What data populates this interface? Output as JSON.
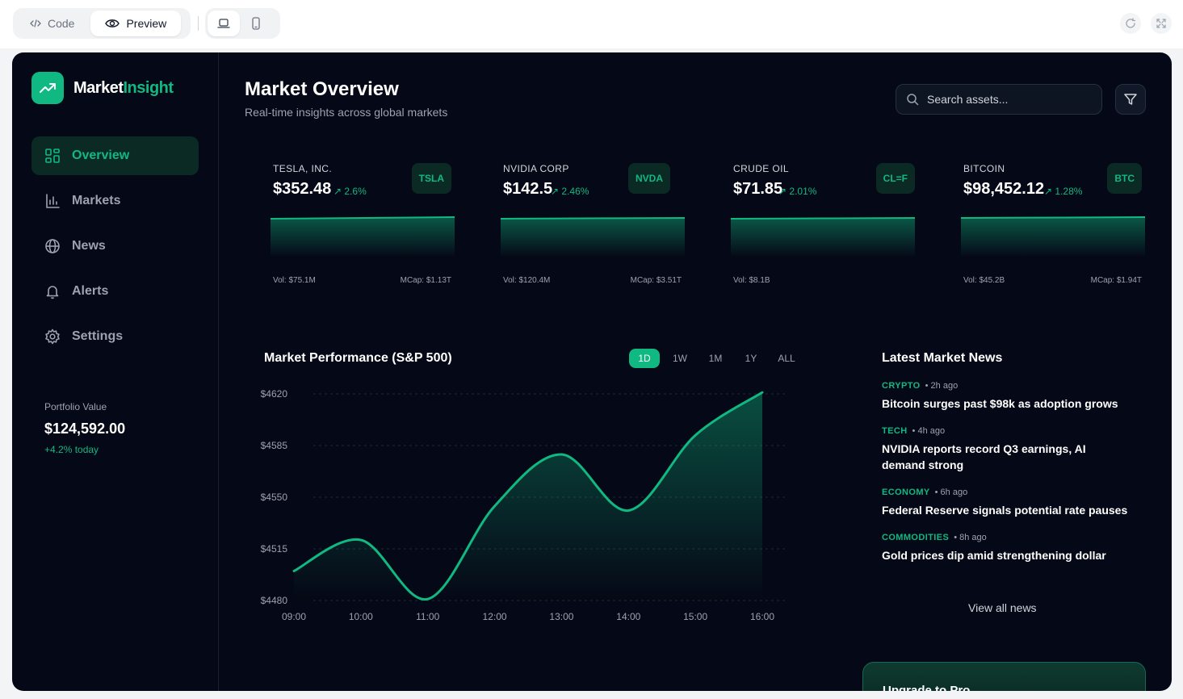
{
  "chrome": {
    "code_label": "Code",
    "preview_label": "Preview"
  },
  "app": {
    "brand_prefix": "Market",
    "brand_suffix": "Insight",
    "accent_color": "#10b981",
    "background_color": "#050816"
  },
  "sidebar": {
    "items": [
      {
        "label": "Overview",
        "icon": "grid-icon",
        "active": true
      },
      {
        "label": "Markets",
        "icon": "bar-chart-icon"
      },
      {
        "label": "News",
        "icon": "globe-icon"
      },
      {
        "label": "Alerts",
        "icon": "bell-icon"
      },
      {
        "label": "Settings",
        "icon": "gear-icon"
      }
    ],
    "portfolio": {
      "label": "Portfolio Value",
      "value": "$124,592.00",
      "change": "+4.2% today"
    }
  },
  "header": {
    "title": "Market Overview",
    "subtitle": "Real-time insights across global markets",
    "search_placeholder": "Search assets..."
  },
  "assets": [
    {
      "name": "TESLA, INC.",
      "price": "$352.48",
      "change": "2.6%",
      "ticker": "TSLA",
      "vol": "Vol: $75.1M",
      "mcap": "MCap: $1.13T"
    },
    {
      "name": "NVIDIA CORP",
      "price": "$142.5",
      "change": "2.46%",
      "ticker": "NVDA",
      "vol": "Vol: $120.4M",
      "mcap": "MCap: $3.51T"
    },
    {
      "name": "CRUDE OIL",
      "price": "$71.85",
      "change": "2.01%",
      "ticker": "CL=F",
      "vol": "Vol: $8.1B",
      "mcap": ""
    },
    {
      "name": "BITCOIN",
      "price": "$98,452.12",
      "change": "1.28%",
      "ticker": "BTC",
      "vol": "Vol: $45.2B",
      "mcap": "MCap: $1.94T"
    }
  ],
  "performance": {
    "title": "Market Performance (S&P 500)",
    "ranges": [
      "1D",
      "1W",
      "1M",
      "1Y",
      "ALL"
    ],
    "active_range": "1D"
  },
  "chart_data": {
    "type": "area",
    "title": "Market Performance (S&P 500)",
    "x": [
      "09:00",
      "10:00",
      "11:00",
      "12:00",
      "13:00",
      "14:00",
      "15:00",
      "16:00"
    ],
    "series": [
      {
        "values": [
          4500,
          4521,
          4481,
          4544,
          4579,
          4541,
          4592,
          4621
        ]
      }
    ],
    "yticks": [
      "$4480",
      "$4515",
      "$4550",
      "$4585",
      "$4620"
    ],
    "ylim": [
      4480,
      4620
    ],
    "grid": true,
    "line_color": "#10b981"
  },
  "news": {
    "title": "Latest Market News",
    "items": [
      {
        "category": "CRYPTO",
        "time": "• 2h ago",
        "headline": "Bitcoin surges past $98k as adoption grows"
      },
      {
        "category": "TECH",
        "time": "• 4h ago",
        "headline": "NVIDIA reports record Q3 earnings, AI demand strong"
      },
      {
        "category": "ECONOMY",
        "time": "• 6h ago",
        "headline": "Federal Reserve signals potential rate pauses"
      },
      {
        "category": "COMMODITIES",
        "time": "• 8h ago",
        "headline": "Gold prices dip amid strengthening dollar"
      }
    ],
    "view_all": "View all news"
  },
  "upgrade": {
    "label": "Upgrade to Pro"
  }
}
